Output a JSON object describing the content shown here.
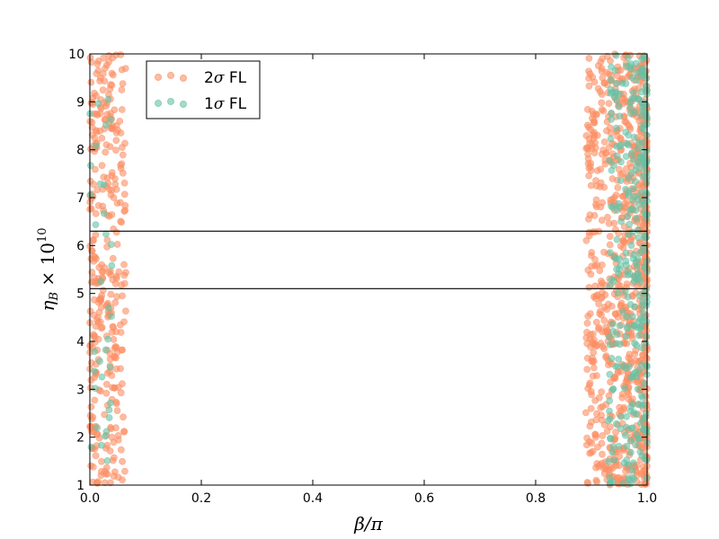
{
  "chart_data": {
    "type": "scatter",
    "title": "",
    "xlabel": "β/π",
    "ylabel": "η_B × 10^10",
    "ylabel_parts": {
      "main": "η",
      "sub": "B",
      "mid": " × 10",
      "sup": "10"
    },
    "xlabel_parts": {
      "main": "β/π"
    },
    "xlim": [
      0.0,
      1.0
    ],
    "ylim": [
      1,
      10
    ],
    "xticks": [
      "0.0",
      "0.2",
      "0.4",
      "0.6",
      "0.8",
      "1.0"
    ],
    "xtick_values": [
      0.0,
      0.2,
      0.4,
      0.6,
      0.8,
      1.0
    ],
    "yticks": [
      "1",
      "2",
      "3",
      "4",
      "5",
      "6",
      "7",
      "8",
      "9",
      "10"
    ],
    "ytick_values": [
      1,
      2,
      3,
      4,
      5,
      6,
      7,
      8,
      9,
      10
    ],
    "grid": false,
    "legend_position": "top-left",
    "horizontal_lines": [
      5.1,
      6.3
    ],
    "series": [
      {
        "name": "2σ FL",
        "label_parts": {
          "num": "2",
          "sym": "σ",
          "rest": " FL"
        },
        "color": "#fc8d62",
        "regions": [
          {
            "x": [
              0.0,
              0.065
            ],
            "y": [
              1,
              10
            ],
            "n": 340
          },
          {
            "x": [
              0.89,
              1.0
            ],
            "y": [
              1,
              10
            ],
            "n": 880
          }
        ]
      },
      {
        "name": "1σ FL",
        "label_parts": {
          "num": "1",
          "sym": "σ",
          "rest": " FL"
        },
        "color": "#66c2a5",
        "regions": [
          {
            "x": [
              0.0,
              0.04
            ],
            "y": [
              1,
              10
            ],
            "n": 35
          },
          {
            "x": [
              0.93,
              1.0
            ],
            "y": [
              1,
              10
            ],
            "n": 320
          }
        ]
      }
    ]
  }
}
